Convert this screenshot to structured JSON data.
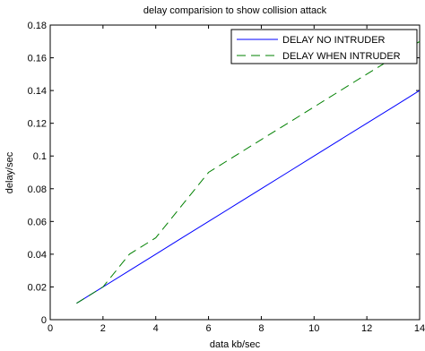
{
  "chart_data": {
    "type": "line",
    "title": "delay comparision to show collision attack",
    "xlabel": "data kb/sec",
    "ylabel": "delay/sec",
    "xlim": [
      0,
      14
    ],
    "ylim": [
      0,
      0.18
    ],
    "xticks": [
      0,
      2,
      4,
      6,
      8,
      10,
      12,
      14
    ],
    "yticks": [
      0,
      0.02,
      0.04,
      0.06,
      0.08,
      0.1,
      0.12,
      0.14,
      0.16,
      0.18
    ],
    "xtick_labels": [
      "0",
      "2",
      "4",
      "6",
      "8",
      "10",
      "12",
      "14"
    ],
    "ytick_labels": [
      "0",
      "0.02",
      "0.04",
      "0.06",
      "0.08",
      "0.1",
      "0.12",
      "0.14",
      "0.16",
      "0.18"
    ],
    "grid": false,
    "legend_position": "top-right",
    "series": [
      {
        "name": "DELAY NO INTRUDER",
        "color": "#0000ff",
        "style": "solid",
        "x": [
          1,
          2,
          3,
          4,
          5,
          6,
          7,
          8,
          9,
          10,
          11,
          12,
          13,
          14
        ],
        "y": [
          0.01,
          0.02,
          0.03,
          0.04,
          0.05,
          0.06,
          0.07,
          0.08,
          0.09,
          0.1,
          0.11,
          0.12,
          0.13,
          0.14
        ]
      },
      {
        "name": "DELAY WHEN INTRUDER",
        "color": "#008000",
        "style": "dashed",
        "x": [
          1,
          2,
          3,
          4,
          5,
          6,
          7,
          8,
          9,
          10,
          11,
          12,
          13,
          14
        ],
        "y": [
          0.01,
          0.02,
          0.04,
          0.05,
          0.07,
          0.09,
          0.1,
          0.11,
          0.12,
          0.13,
          0.14,
          0.15,
          0.16,
          0.17
        ]
      }
    ]
  }
}
